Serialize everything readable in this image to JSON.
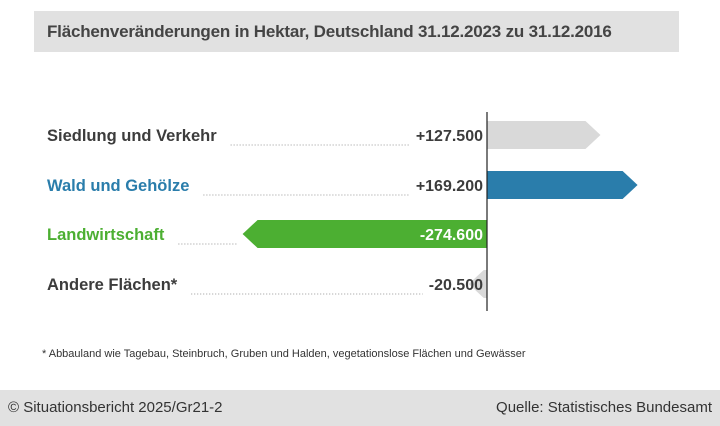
{
  "title": "Flächenveränderungen in Hektar, Deutschland 31.12.2023 zu 31.12.2016",
  "footnote": "* Abbauland wie Tagebau, Steinbruch, Gruben und Halden, vegetationslose Flächen und Gewässer",
  "footer": {
    "copyright": "© Situationsbericht 2025/Gr21-2",
    "source": "Quelle: Statistisches Bundesamt"
  },
  "chart_data": {
    "type": "bar",
    "orientation": "horizontal-diverging",
    "categories": [
      "Siedlung und Verkehr",
      "Wald und Gehölze",
      "Landwirtschaft",
      "Andere Flächen*"
    ],
    "values": [
      127500,
      169200,
      -274600,
      -20500
    ],
    "value_labels": [
      "+127.500",
      "+169.200",
      "-274.600",
      "-20.500"
    ],
    "colors": [
      "#d9d9d9",
      "#2a7dab",
      "#4caf32",
      "#d9d9d9"
    ],
    "label_colors": [
      "#3c3c3c",
      "#2a7dab",
      "#4caf32",
      "#3c3c3c"
    ],
    "value_label_colors": [
      "#3c3c3c",
      "#3c3c3c",
      "#ffffff",
      "#3c3c3c"
    ],
    "unit": "Hektar"
  }
}
